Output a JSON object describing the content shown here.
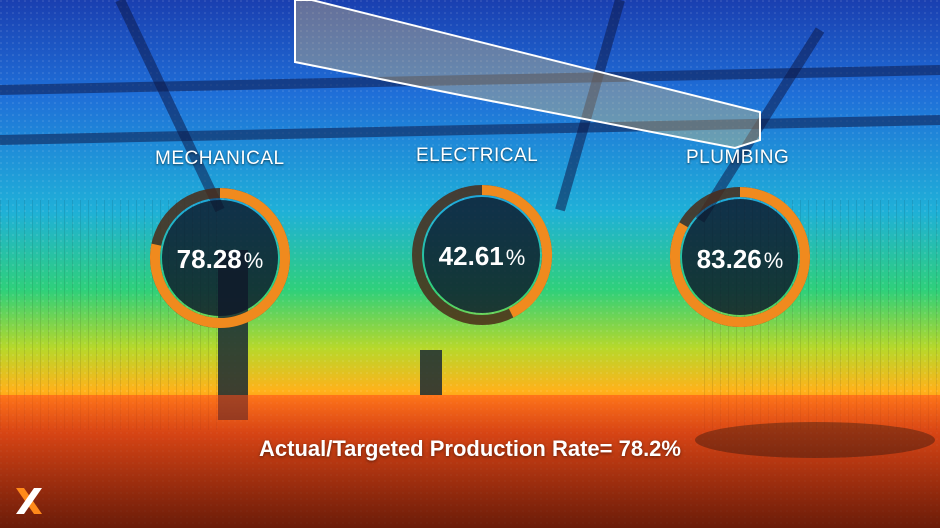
{
  "gauges": [
    {
      "label": "MECHANICAL",
      "value": "78.28",
      "unit": "%",
      "fraction": 0.7828
    },
    {
      "label": "ELECTRICAL",
      "value": "42.61",
      "unit": "%",
      "fraction": 0.4261
    },
    {
      "label": "PLUMBING",
      "value": "83.26",
      "unit": "%",
      "fraction": 0.8326
    }
  ],
  "footer": {
    "text": "Actual/Targeted Production Rate= 78.2%"
  },
  "colors": {
    "ring": "#f08a1e",
    "track": "#4a2a18",
    "disc": "#0e1628",
    "floor": "#ff4a1a"
  },
  "icons": {
    "logo": "brand-x-logo"
  }
}
